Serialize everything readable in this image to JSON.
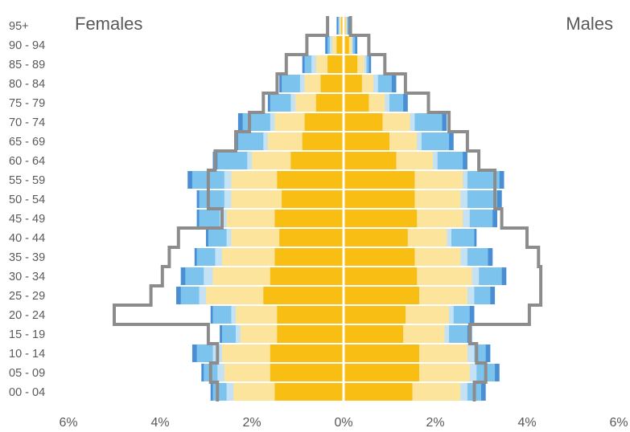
{
  "chart_data": {
    "type": "bar",
    "orientation": "horizontal-pyramid",
    "left_title": "Females",
    "right_title": "Males",
    "categories": [
      "00 - 04",
      "05 - 09",
      "10 - 14",
      "15 - 19",
      "20 - 24",
      "25 - 29",
      "30 - 34",
      "35 - 39",
      "40 - 44",
      "45 - 49",
      "50 - 54",
      "55 - 59",
      "60 - 64",
      "65 - 69",
      "70 - 74",
      "75 - 79",
      "80 - 84",
      "85 - 89",
      "90 - 94",
      "95+"
    ],
    "x_ticks": [
      "6%",
      "4%",
      "2%",
      "0%",
      "2%",
      "4%",
      "6%"
    ],
    "xlim": [
      -6,
      6
    ],
    "colors": {
      "inner": "#F8BE13",
      "mid": "#FCE49C",
      "light_blue": "#C5E2F5",
      "sky_blue": "#7CC4EE",
      "deep_blue": "#4A8FD3",
      "outline": "#8C8C8C",
      "axis": "#FFFFFF"
    },
    "females": {
      "inner": [
        1.5,
        1.6,
        1.6,
        1.45,
        1.45,
        1.75,
        1.6,
        1.5,
        1.4,
        1.5,
        1.35,
        1.45,
        1.15,
        0.9,
        0.85,
        0.6,
        0.5,
        0.35,
        0.15,
        0.05
      ],
      "mid": [
        2.4,
        2.6,
        2.65,
        2.25,
        2.35,
        3.0,
        2.85,
        2.65,
        2.45,
        2.55,
        2.45,
        2.45,
        2.0,
        1.65,
        1.5,
        1.05,
        0.85,
        0.6,
        0.25,
        0.08
      ],
      "light_blue": [
        2.55,
        2.75,
        2.85,
        2.35,
        2.45,
        3.15,
        3.05,
        2.8,
        2.55,
        2.7,
        2.6,
        2.6,
        2.1,
        1.75,
        1.6,
        1.15,
        0.95,
        0.7,
        0.3,
        0.1
      ],
      "sky_blue": [
        2.85,
        3.05,
        3.2,
        2.65,
        2.85,
        3.55,
        3.45,
        3.2,
        2.95,
        3.15,
        3.15,
        3.3,
        2.75,
        2.3,
        2.2,
        1.6,
        1.35,
        0.85,
        0.35,
        0.12
      ],
      "deep_blue": [
        2.9,
        3.1,
        3.3,
        2.7,
        2.9,
        3.65,
        3.55,
        3.25,
        3.0,
        3.2,
        3.2,
        3.4,
        2.85,
        2.35,
        2.3,
        1.65,
        1.4,
        0.9,
        0.4,
        0.15
      ],
      "outline": [
        2.75,
        2.9,
        2.75,
        2.95,
        5.0,
        4.2,
        3.95,
        3.8,
        3.6,
        2.65,
        2.95,
        2.95,
        2.8,
        2.35,
        2.05,
        1.75,
        1.45,
        1.25,
        0.8,
        0.35
      ]
    },
    "males": {
      "inner": [
        1.5,
        1.65,
        1.65,
        1.3,
        1.35,
        1.65,
        1.6,
        1.55,
        1.4,
        1.6,
        1.55,
        1.55,
        1.15,
        1.0,
        0.85,
        0.55,
        0.4,
        0.3,
        0.12,
        0.04
      ],
      "mid": [
        2.55,
        2.75,
        2.7,
        2.2,
        2.3,
        2.7,
        2.8,
        2.55,
        2.25,
        2.6,
        2.55,
        2.6,
        1.95,
        1.6,
        1.45,
        0.9,
        0.65,
        0.45,
        0.18,
        0.06
      ],
      "light_blue": [
        2.7,
        2.9,
        2.85,
        2.3,
        2.4,
        2.85,
        2.95,
        2.7,
        2.35,
        2.75,
        2.7,
        2.7,
        2.05,
        1.7,
        1.55,
        1.0,
        0.75,
        0.5,
        0.2,
        0.08
      ],
      "sky_blue": [
        3.0,
        3.3,
        3.1,
        2.7,
        2.75,
        3.2,
        3.45,
        3.15,
        2.85,
        3.25,
        3.35,
        3.4,
        2.6,
        2.3,
        2.15,
        1.3,
        1.05,
        0.55,
        0.25,
        0.1
      ],
      "deep_blue": [
        3.1,
        3.4,
        3.2,
        2.8,
        2.85,
        3.3,
        3.55,
        3.25,
        2.9,
        3.35,
        3.45,
        3.5,
        2.7,
        2.4,
        2.25,
        1.4,
        1.15,
        0.6,
        0.3,
        0.12
      ],
      "outline": [
        2.85,
        3.1,
        2.9,
        2.75,
        4.05,
        4.3,
        4.3,
        4.25,
        4.0,
        3.45,
        3.3,
        3.3,
        2.95,
        2.7,
        2.3,
        1.85,
        1.35,
        0.9,
        0.55,
        0.15
      ]
    }
  }
}
